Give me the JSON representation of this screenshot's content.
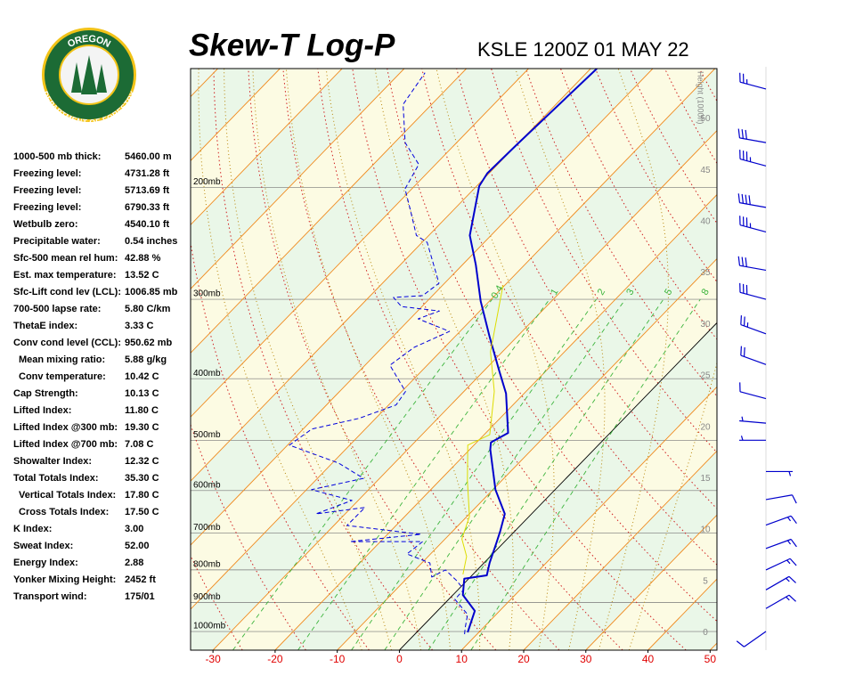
{
  "logo": {
    "top": "OREGON",
    "bottom": "DEPARTMENT OF FORESTRY"
  },
  "indices": {
    "rows": [
      {
        "label": "1000-500 mb thick:",
        "value": "5460.00 m"
      },
      {
        "label": "Freezing level:",
        "value": "4731.28 ft"
      },
      {
        "label": "Freezing level:",
        "value": "5713.69 ft"
      },
      {
        "label": "Freezing level:",
        "value": "6790.33 ft"
      },
      {
        "label": "Wetbulb zero:",
        "value": "4540.10 ft"
      },
      {
        "label": "Precipitable water:",
        "value": "0.54 inches"
      },
      {
        "label": "Sfc-500 mean rel hum:",
        "value": "42.88 %"
      },
      {
        "label": "Est. max temperature:",
        "value": "13.52 C"
      },
      {
        "label": "Sfc-Lift cond lev (LCL):",
        "value": "1006.85 mb"
      },
      {
        "label": "700-500 lapse rate:",
        "value": "5.80 C/km"
      },
      {
        "label": "ThetaE index:",
        "value": "3.33 C"
      },
      {
        "label": "Conv cond level (CCL):",
        "value": "950.62 mb"
      },
      {
        "label": "Mean mixing ratio:",
        "value": "5.88 g/kg",
        "indent": true
      },
      {
        "label": "Conv temperature:",
        "value": "10.42 C",
        "indent": true
      },
      {
        "label": "Cap Strength:",
        "value": "10.13 C"
      },
      {
        "label": "Lifted Index:",
        "value": "11.80 C"
      },
      {
        "label": "Lifted Index @300 mb:",
        "value": "19.30 C"
      },
      {
        "label": "Lifted Index @700 mb:",
        "value": "7.08 C"
      },
      {
        "label": "Showalter Index:",
        "value": "12.32 C"
      },
      {
        "label": "Total Totals Index:",
        "value": "35.30 C"
      },
      {
        "label": "Vertical Totals Index:",
        "value": "17.80 C",
        "indent": true
      },
      {
        "label": "Cross Totals Index:",
        "value": "17.50 C",
        "indent": true
      },
      {
        "label": "K Index:",
        "value": "3.00"
      },
      {
        "label": "Sweat Index:",
        "value": "52.00"
      },
      {
        "label": "Energy Index:",
        "value": "2.88"
      },
      {
        "label": "Yonker Mixing Height:",
        "value": "2452 ft"
      },
      {
        "label": "Transport wind:",
        "value": "175/01"
      }
    ]
  },
  "chart_data": {
    "type": "skewt",
    "title": "Skew-T Log-P",
    "subtitle": "KSLE 1200Z 01 MAY 22",
    "xlim": [
      -33.6,
      51.1
    ],
    "xticks": [
      -30,
      -20,
      -10,
      0,
      10,
      20,
      30,
      40,
      50
    ],
    "xtick_color": "#e00000",
    "ylim": [
      1070,
      130
    ],
    "yscale": "log",
    "yticks": [
      {
        "value": 1000,
        "label": "1000mb"
      },
      {
        "value": 900,
        "label": "900mb"
      },
      {
        "value": 800,
        "label": "800mb"
      },
      {
        "value": 700,
        "label": "700mb"
      },
      {
        "value": 600,
        "label": "600mb"
      },
      {
        "value": 500,
        "label": "500mb"
      },
      {
        "value": 400,
        "label": "400mb"
      },
      {
        "value": 300,
        "label": "300mb"
      },
      {
        "value": 200,
        "label": "200mb"
      }
    ],
    "y2label": "Height (1000ft)",
    "y2lim": [
      -1.7,
      54.9
    ],
    "y2ticks": [
      0,
      5,
      10,
      15,
      20,
      25,
      30,
      35,
      40,
      45,
      50
    ],
    "isotherms": [
      -120,
      -110,
      -100,
      -90,
      -80,
      -70,
      -60,
      -50,
      -40,
      -30,
      -20,
      -10,
      0,
      10,
      20,
      30,
      40,
      50
    ],
    "isotherm_color": "#f08a1e",
    "freezing_isotherm": 0,
    "band_colors": [
      "#eaf7e8",
      "#fcfbe3"
    ],
    "dry_adiabats": [
      -30,
      -20,
      -10,
      0,
      10,
      20,
      30,
      40,
      50,
      60,
      70,
      80,
      90,
      100,
      110,
      120,
      130,
      140,
      150,
      160,
      170,
      180
    ],
    "dry_adiabat_color": "#d02020",
    "moist_adiabats": [
      -10,
      -5,
      0,
      5,
      10,
      15,
      20,
      25,
      30,
      35
    ],
    "moist_adiabat_color": "#b8860b",
    "mixing_ratios": [
      0.4,
      1,
      2,
      3,
      5,
      8
    ],
    "mixing_ratio_color": "#3cb43c",
    "series": [
      {
        "color": "#0000cc",
        "width": 2,
        "dash": false,
        "pressure": [
          1003,
          928,
          876,
          826,
          816,
          780,
          726,
          694,
          653,
          598,
          517,
          504,
          487,
          422,
          387,
          343,
          302,
          265,
          238,
          199,
          190,
          171,
          130
        ],
        "values": [
          8.2,
          6.0,
          1.6,
          -0.7,
          2.4,
          0.9,
          -1.1,
          -2.4,
          -4.3,
          -9.6,
          -16.7,
          -17.7,
          -16.4,
          -22.9,
          -27.8,
          -34.5,
          -41.4,
          -47.8,
          -53.4,
          -59.6,
          -60.3,
          -60.0,
          -59.0
        ]
      },
      {
        "color": "#0000dd",
        "width": 1,
        "dash": true,
        "pressure": [
          1010,
          987,
          940,
          890,
          859,
          832,
          800,
          821,
          780,
          755,
          722,
          722,
          703,
          681,
          638,
          653,
          622,
          598,
          574,
          543,
          509,
          480,
          462,
          440,
          419,
          381,
          357,
          337,
          322,
          313,
          308,
          298,
          296,
          283,
          244,
          238,
          216,
          201,
          184,
          170,
          148,
          132
        ],
        "values": [
          8.0,
          7.1,
          5.4,
          1.0,
          0.9,
          -1.6,
          -5.1,
          -6.2,
          -8.7,
          -13.8,
          -13.2,
          -24.9,
          -14.6,
          -27.9,
          -27.8,
          -34.7,
          -31.0,
          -39.2,
          -32.6,
          -39.0,
          -49.7,
          -48.6,
          -42.7,
          -38.8,
          -39.4,
          -46.0,
          -44.9,
          -41.7,
          -48.7,
          -46.5,
          -53.3,
          -56.0,
          -51.6,
          -50.9,
          -59.2,
          -62.0,
          -67.2,
          -71.1,
          -72.7,
          -78.3,
          -84.6,
          -86.0
        ]
      },
      {
        "color": "#dddd00",
        "width": 1,
        "dash": false,
        "pressure": [
          813,
          762,
          715,
          659,
          579,
          509,
          490,
          419,
          363,
          285
        ],
        "values": [
          -1.6,
          -3.8,
          -7.3,
          -9.6,
          -15.5,
          -21.0,
          -19.1,
          -25.1,
          -31.9,
          -40.3
        ]
      }
    ],
    "winds": {
      "color": "#0000cc",
      "pressure": [
        140,
        170,
        185,
        215,
        235,
        270,
        300,
        340,
        380,
        430,
        470,
        500,
        560,
        620,
        680,
        740,
        800,
        860,
        920,
        1000
      ],
      "direction": [
        285,
        280,
        285,
        280,
        285,
        280,
        285,
        290,
        290,
        285,
        275,
        270,
        90,
        80,
        70,
        70,
        65,
        60,
        60,
        235
      ],
      "speed": [
        25,
        30,
        35,
        40,
        35,
        30,
        30,
        25,
        20,
        10,
        5,
        5,
        5,
        10,
        15,
        15,
        15,
        15,
        15,
        10
      ]
    }
  }
}
